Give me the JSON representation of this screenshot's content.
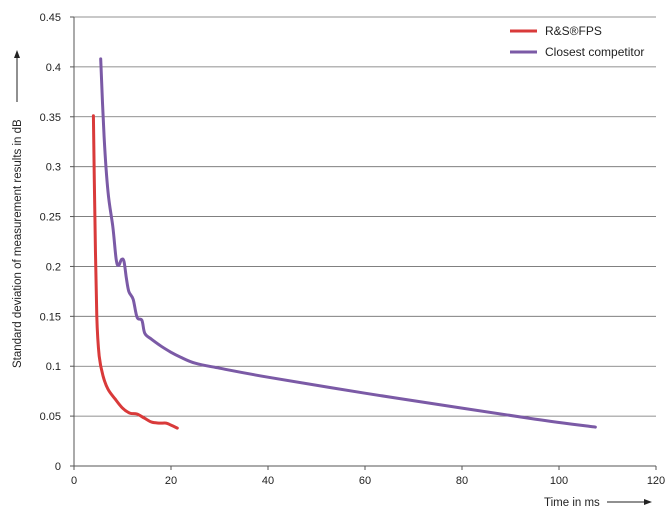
{
  "chart_data": {
    "type": "line",
    "title": "",
    "xlabel": "Time in ms",
    "ylabel": "Standard deviation  of measurement results in dB",
    "xlim": [
      0,
      120
    ],
    "ylim": [
      0,
      0.45
    ],
    "x_ticks": [
      0,
      20,
      40,
      60,
      80,
      100,
      120
    ],
    "y_ticks": [
      0,
      0.05,
      0.1,
      0.15,
      0.2,
      0.25,
      0.3,
      0.35,
      0.4,
      0.45
    ],
    "x_tick_labels": [
      "0",
      "20",
      "40",
      "60",
      "80",
      "100",
      "120"
    ],
    "y_tick_labels": [
      "0",
      "0.05",
      "0.1",
      "0.15",
      "0.2",
      "0.25",
      "0.3",
      "0.35",
      "0.4",
      "0.45"
    ],
    "grid": "horizontal",
    "legend_position": "top-right",
    "series": [
      {
        "name": "R&S®FPS",
        "color": "#d93a3a",
        "points": [
          [
            4.0,
            0.351
          ],
          [
            4.3,
            0.25
          ],
          [
            4.7,
            0.15
          ],
          [
            5.2,
            0.11
          ],
          [
            6,
            0.09
          ],
          [
            7,
            0.077
          ],
          [
            8.5,
            0.067
          ],
          [
            10,
            0.058
          ],
          [
            11.5,
            0.053
          ],
          [
            13,
            0.052
          ],
          [
            14.5,
            0.048
          ],
          [
            16,
            0.044
          ],
          [
            17.5,
            0.043
          ],
          [
            19,
            0.043
          ],
          [
            20,
            0.041
          ],
          [
            21.3,
            0.038
          ]
        ]
      },
      {
        "name": "Closest competitor",
        "color": "#7b5aa6",
        "points": [
          [
            5.5,
            0.408
          ],
          [
            6.2,
            0.33
          ],
          [
            7,
            0.275
          ],
          [
            8,
            0.24
          ],
          [
            8.7,
            0.207
          ],
          [
            9.2,
            0.201
          ],
          [
            9.8,
            0.207
          ],
          [
            10.3,
            0.205
          ],
          [
            10.8,
            0.188
          ],
          [
            11.3,
            0.175
          ],
          [
            12.2,
            0.167
          ],
          [
            13,
            0.149
          ],
          [
            14,
            0.146
          ],
          [
            14.6,
            0.133
          ],
          [
            16,
            0.127
          ],
          [
            18,
            0.12
          ],
          [
            20,
            0.114
          ],
          [
            22,
            0.109
          ],
          [
            25,
            0.103
          ],
          [
            30,
            0.098
          ],
          [
            40,
            0.089
          ],
          [
            60,
            0.073
          ],
          [
            80,
            0.058
          ],
          [
            95,
            0.047
          ],
          [
            107.5,
            0.039
          ]
        ]
      }
    ]
  }
}
